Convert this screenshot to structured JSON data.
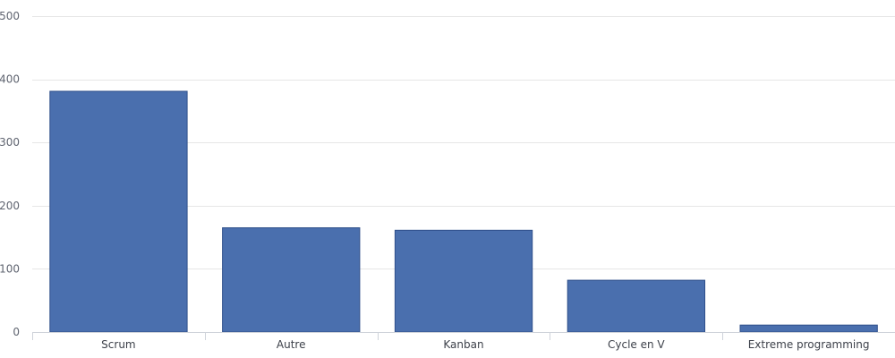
{
  "chart_data": {
    "type": "bar",
    "categories": [
      "Scrum",
      "Autre",
      "Kanban",
      "Cycle en V",
      "Extreme programming"
    ],
    "values": [
      381,
      165,
      161,
      82,
      11
    ],
    "ylim": [
      0,
      500
    ],
    "yticks": [
      0,
      100,
      200,
      300,
      400,
      500
    ],
    "grid": true,
    "bar_color": "#4a6fae"
  }
}
